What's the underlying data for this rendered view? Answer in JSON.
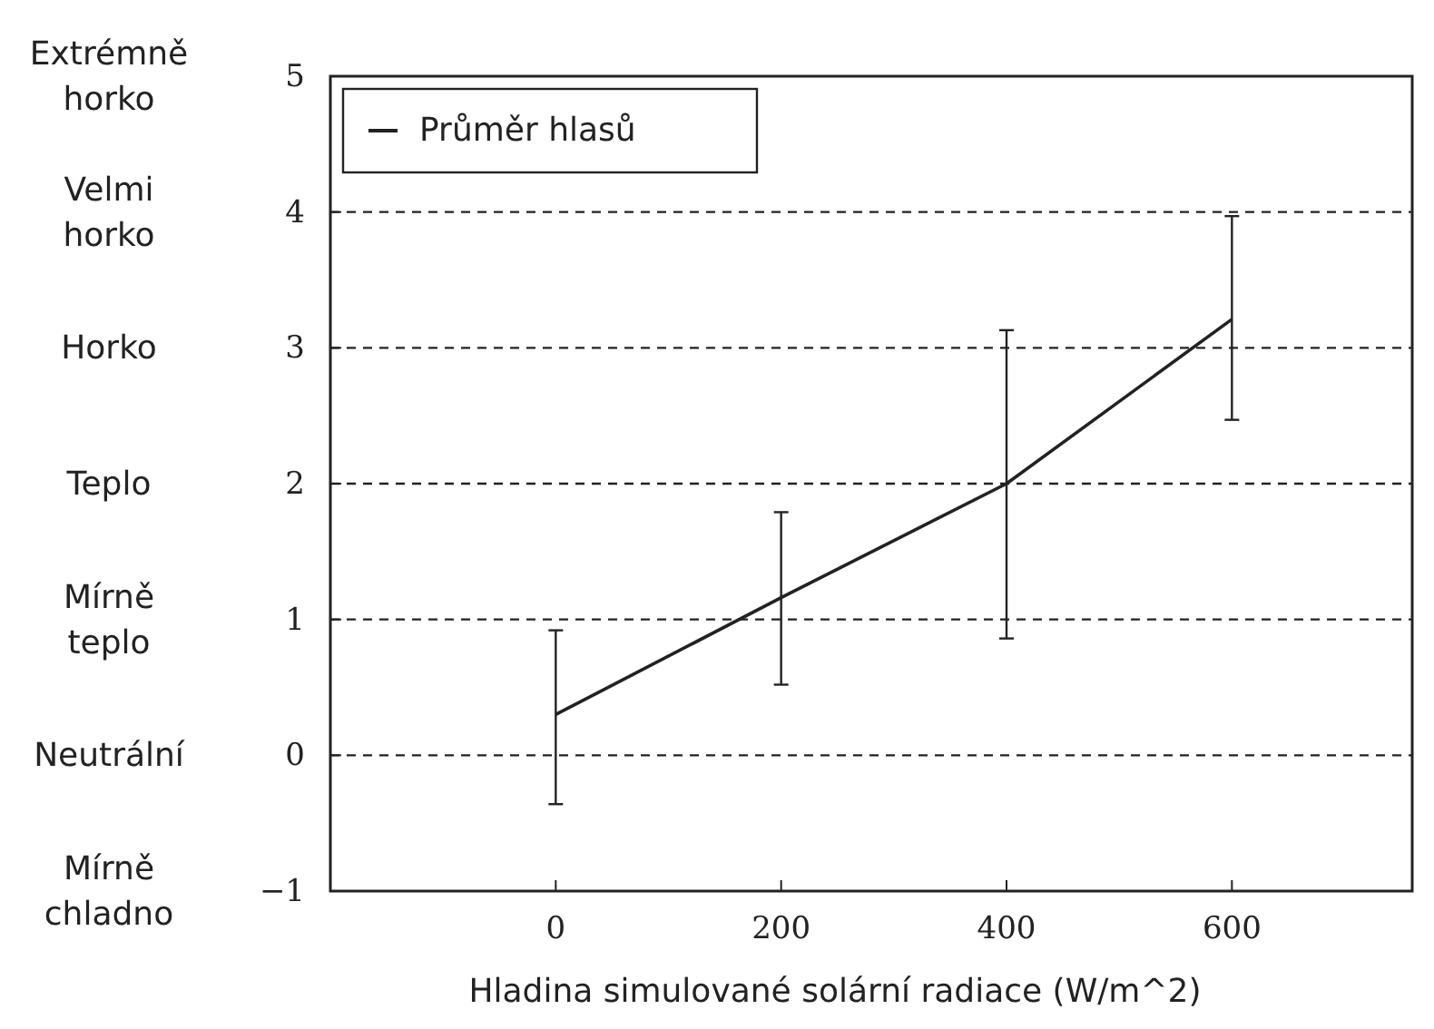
{
  "chart_data": {
    "type": "line",
    "xlabel": "Hladina simulované solární radiace (W/m^2)",
    "x": [
      0,
      200,
      400,
      600
    ],
    "series": [
      {
        "name": "Průměr hlasů",
        "color": "#222222",
        "values": [
          0.3,
          1.16,
          2.0,
          3.21
        ],
        "errors": [
          [
            -0.36,
            0.92
          ],
          [
            0.52,
            1.79
          ],
          [
            0.86,
            3.13
          ],
          [
            2.47,
            3.97
          ]
        ]
      }
    ],
    "xlim": [
      -200,
      760
    ],
    "xticks": [
      0,
      200,
      400,
      600
    ],
    "ylim": [
      -1,
      5
    ],
    "yticks": [
      {
        "value": -1,
        "label": "−1"
      },
      0,
      1,
      2,
      3,
      4,
      5
    ],
    "annotations": [
      "Extrémně horko",
      "Velmi horko",
      "Horko",
      "Teplo",
      "Mírně teplo",
      "Neutrální",
      "Mírně chladno"
    ],
    "grid": "y",
    "line_style": "solid",
    "marker": "none",
    "legend": "top left"
  }
}
